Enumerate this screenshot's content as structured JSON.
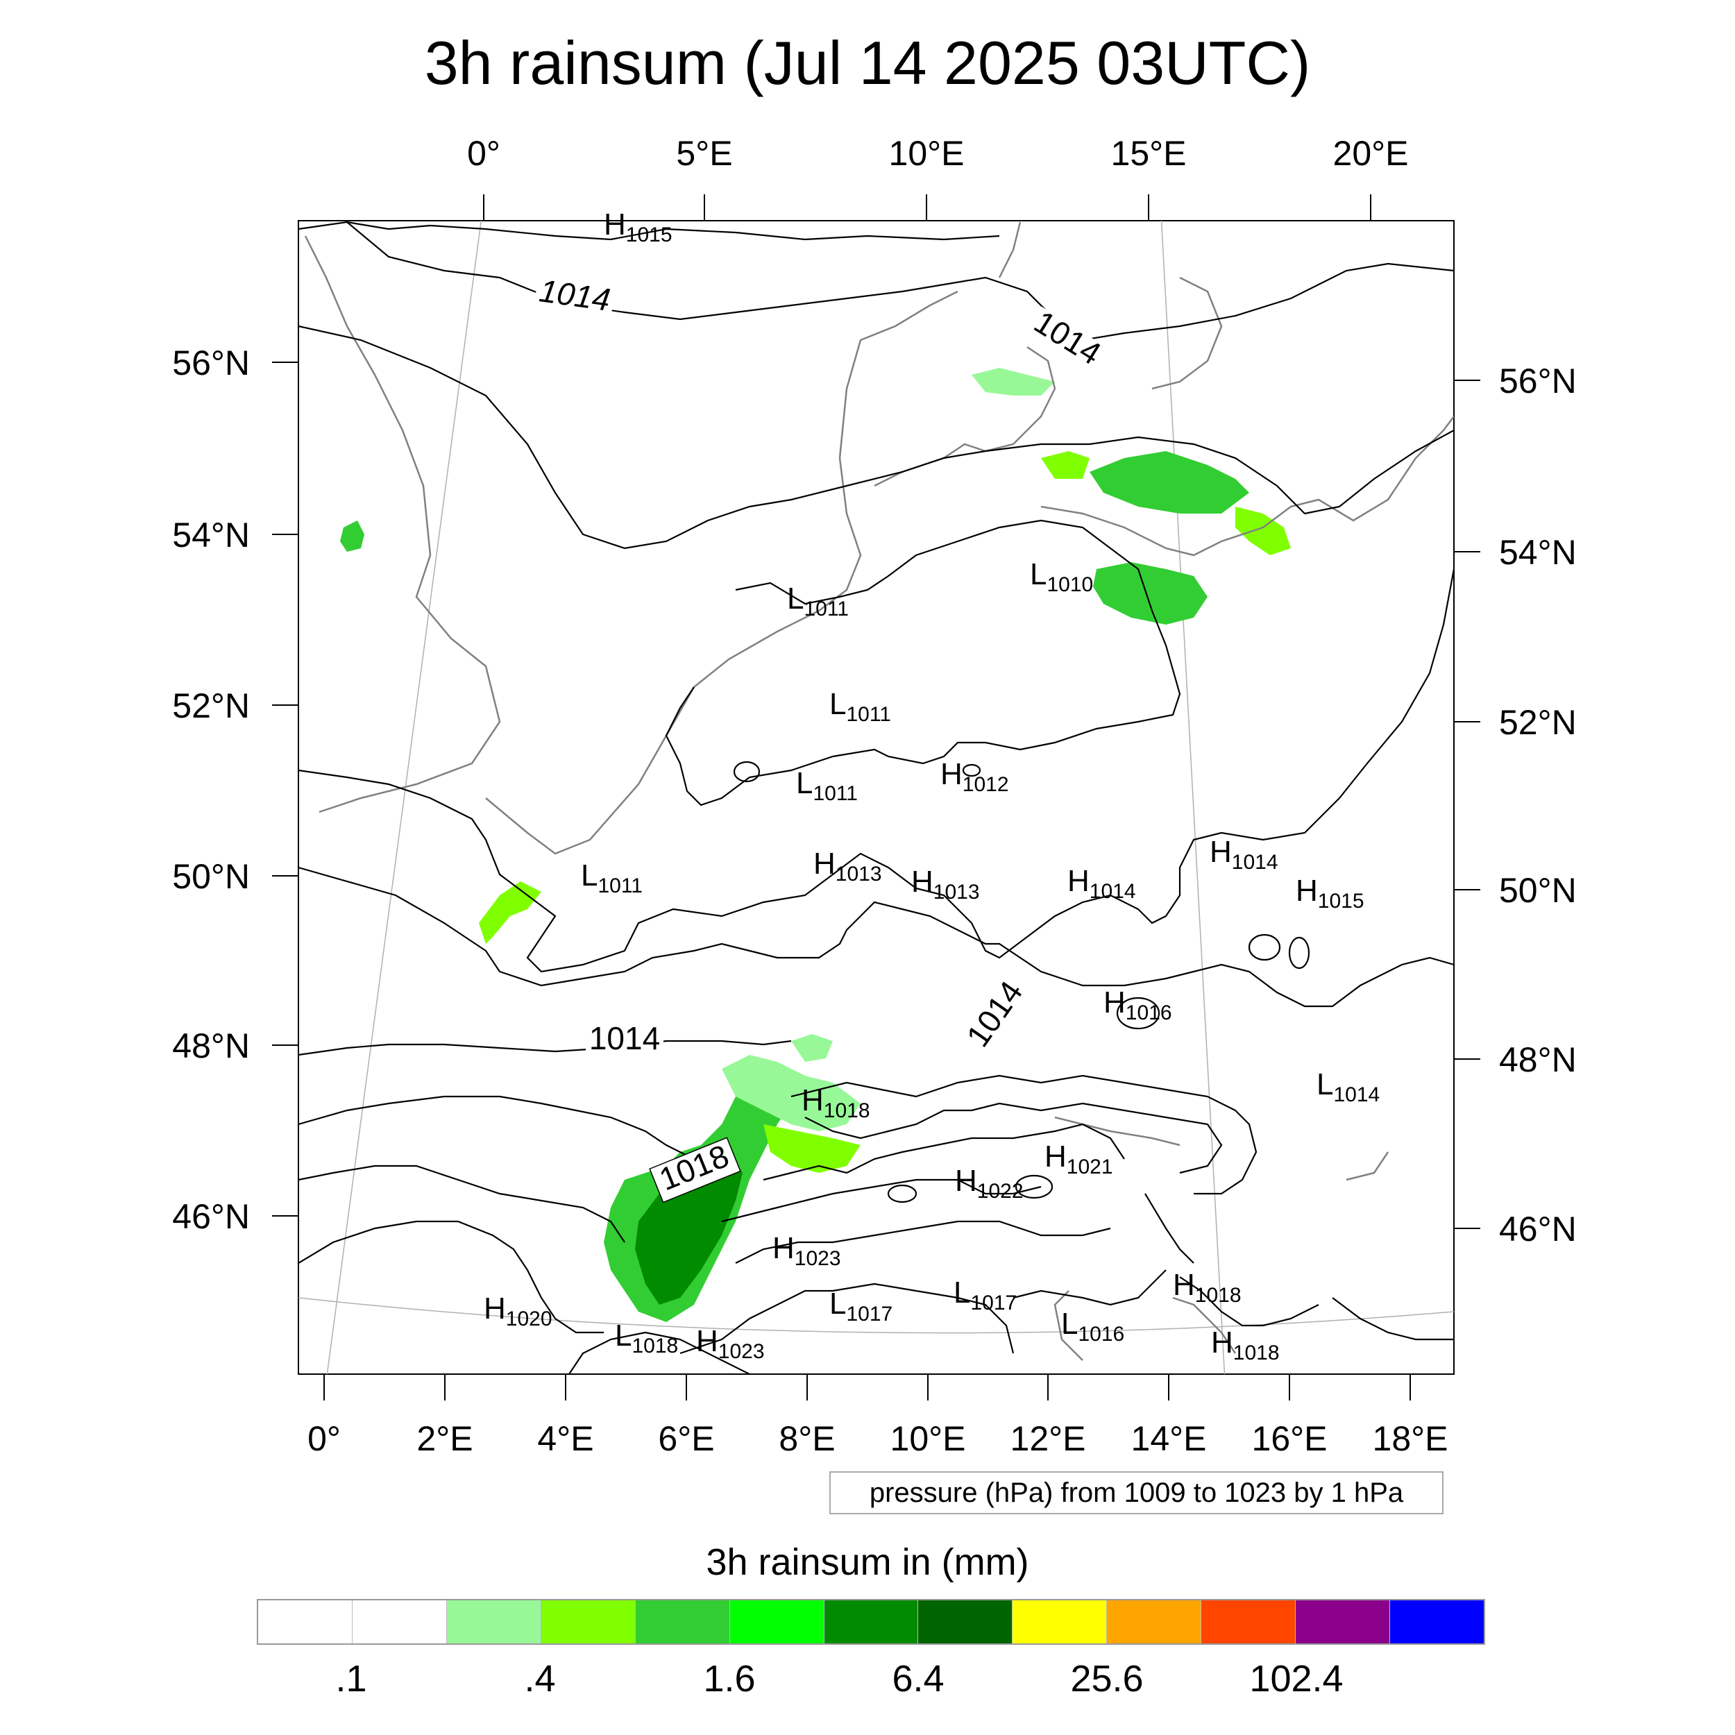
{
  "title": "3h rainsum (Jul 14 2025 03UTC)",
  "map": {
    "top_lon_labels": [
      "0°",
      "5°E",
      "10°E",
      "15°E",
      "20°E"
    ],
    "bottom_lon_labels": [
      "0°",
      "2°E",
      "4°E",
      "6°E",
      "8°E",
      "10°E",
      "12°E",
      "14°E",
      "16°E",
      "18°E"
    ],
    "left_lat_labels": [
      "56°N",
      "54°N",
      "52°N",
      "50°N",
      "48°N",
      "46°N"
    ],
    "right_lat_labels": [
      "56°N",
      "54°N",
      "52°N",
      "50°N",
      "48°N",
      "46°N"
    ],
    "contour_labels": [
      "1014",
      "1014",
      "1014",
      "1014",
      "1018"
    ],
    "pressure_systems": [
      {
        "type": "H",
        "value": "1015"
      },
      {
        "type": "L",
        "value": "1011"
      },
      {
        "type": "L",
        "value": "1010"
      },
      {
        "type": "L",
        "value": "1011"
      },
      {
        "type": "L",
        "value": "1011"
      },
      {
        "type": "H",
        "value": "1012"
      },
      {
        "type": "L",
        "value": "1011"
      },
      {
        "type": "H",
        "value": "1013"
      },
      {
        "type": "H",
        "value": "1013"
      },
      {
        "type": "H",
        "value": "1014"
      },
      {
        "type": "H",
        "value": "1014"
      },
      {
        "type": "H",
        "value": "1015"
      },
      {
        "type": "H",
        "value": "1016"
      },
      {
        "type": "L",
        "value": "1014"
      },
      {
        "type": "H",
        "value": "1018"
      },
      {
        "type": "H",
        "value": "1021"
      },
      {
        "type": "H",
        "value": "1022"
      },
      {
        "type": "H",
        "value": "1023"
      },
      {
        "type": "L",
        "value": "1017"
      },
      {
        "type": "L",
        "value": "1017"
      },
      {
        "type": "L",
        "value": "1016"
      },
      {
        "type": "H",
        "value": "1018"
      },
      {
        "type": "H",
        "value": "1018"
      },
      {
        "type": "H",
        "value": "1020"
      },
      {
        "type": "L",
        "value": "1018"
      },
      {
        "type": "H",
        "value": "1023"
      }
    ],
    "colors": {
      "coast": "#808080",
      "isobar": "#000000",
      "grid": "#b0b0b0"
    }
  },
  "info_box": "pressure (hPa) from 1009 to 1023 by 1 hPa",
  "colorbar": {
    "title": "3h rainsum in (mm)",
    "colors": [
      "#ffffff",
      "#ffffff",
      "#98f898",
      "#80ff00",
      "#32cd32",
      "#00ff00",
      "#008b00",
      "#006400",
      "#ffff00",
      "#ffa500",
      "#ff4500",
      "#8b008b",
      "#0000ff"
    ],
    "labels": [
      ".1",
      ".4",
      "1.6",
      "6.4",
      "25.6",
      "102.4"
    ]
  },
  "chart_data": {
    "type": "map",
    "title": "3h rainsum (Jul 14 2025 03UTC)",
    "field": "3h rainsum",
    "units": "mm",
    "colorbar_levels": [
      0.1,
      0.4,
      1.6,
      6.4,
      25.6,
      102.4
    ],
    "contour_field": "pressure (hPa)",
    "contour_min": 1009,
    "contour_max": 1023,
    "contour_step": 1,
    "lon_range": [
      -0.5,
      19
    ],
    "lat_range": [
      44.5,
      57.5
    ]
  }
}
